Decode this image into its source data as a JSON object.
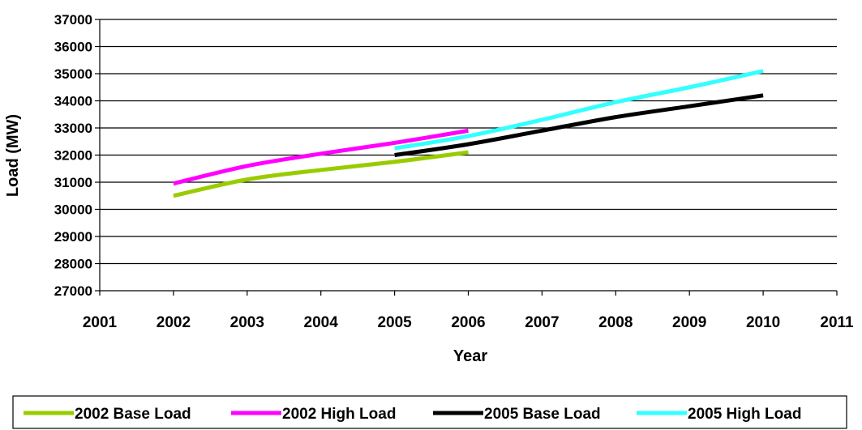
{
  "chart_data": {
    "type": "line",
    "title": "",
    "xlabel": "Year",
    "ylabel": "Load (MW)",
    "xlim": [
      2001,
      2011
    ],
    "ylim": [
      27000,
      37000
    ],
    "x_ticks": [
      "2001",
      "2002",
      "2003",
      "2004",
      "2005",
      "2006",
      "2007",
      "2008",
      "2009",
      "2010",
      "2011"
    ],
    "y_ticks": [
      "27000",
      "28000",
      "29000",
      "30000",
      "31000",
      "32000",
      "33000",
      "34000",
      "35000",
      "36000",
      "37000"
    ],
    "grid": "horizontal",
    "legend_position": "bottom",
    "series": [
      {
        "name": "2002 Base Load",
        "color": "#99cc00",
        "x": [
          2002,
          2003,
          2004,
          2005,
          2006
        ],
        "y": [
          30500,
          31100,
          31450,
          31750,
          32100
        ]
      },
      {
        "name": "2002 High Load",
        "color": "#ff00ff",
        "x": [
          2002,
          2003,
          2004,
          2005,
          2006
        ],
        "y": [
          30950,
          31600,
          32050,
          32450,
          32900
        ]
      },
      {
        "name": "2005 Base Load",
        "color": "#000000",
        "x": [
          2005,
          2006,
          2007,
          2008,
          2009,
          2010
        ],
        "y": [
          32000,
          32400,
          32900,
          33400,
          33800,
          34200
        ]
      },
      {
        "name": "2005 High Load",
        "color": "#33ffff",
        "x": [
          2005,
          2006,
          2007,
          2008,
          2009,
          2010
        ],
        "y": [
          32250,
          32700,
          33300,
          33950,
          34500,
          35100
        ]
      }
    ]
  }
}
